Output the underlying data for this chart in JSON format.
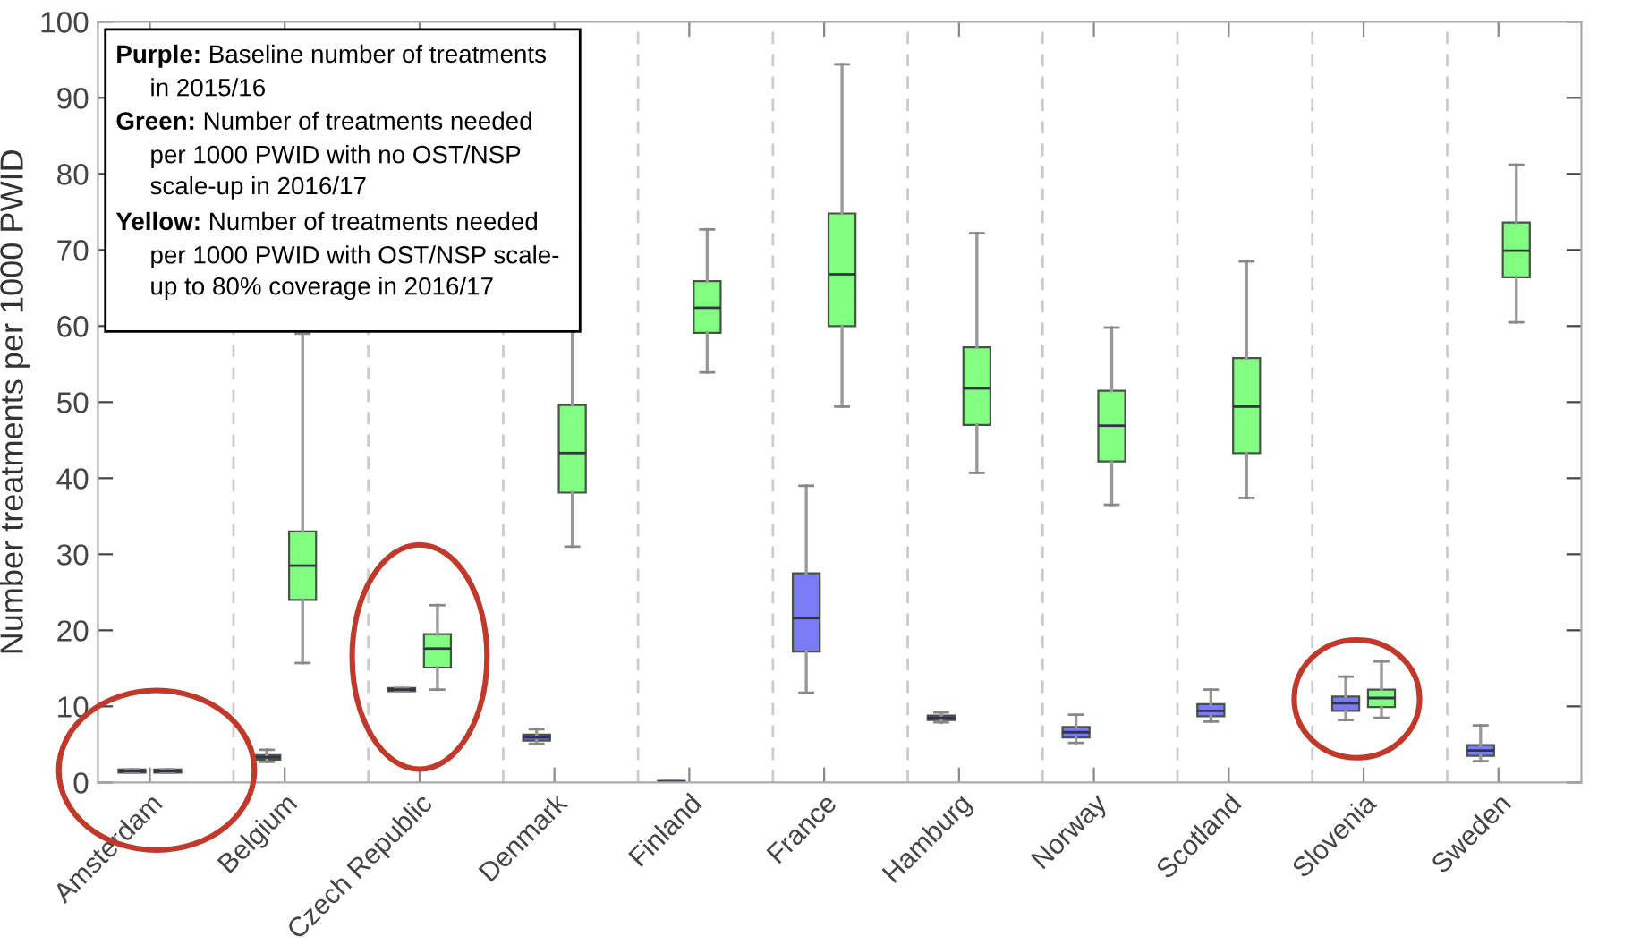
{
  "chart_data": {
    "type": "box",
    "ylabel": "Number treatments per 1000 PWID",
    "categories": [
      "Amsterdam",
      "Belgium",
      "Czech Republic",
      "Denmark",
      "Finland",
      "France",
      "Hamburg",
      "Norway",
      "Scotland",
      "Slovenia",
      "Sweden"
    ],
    "ylim": [
      0,
      100
    ],
    "yticks": [
      0,
      10,
      20,
      30,
      40,
      50,
      60,
      70,
      80,
      90,
      100
    ],
    "grid": "x",
    "annotations": [
      "Purple: Baseline number of treatments\nin 2015/16",
      "Green: Number of treatments needed\nper 1000 PWID with no OST/NSP\nscale-up in 2016/17",
      "Yellow: Number of treatments needed\nper 1000 PWID with OST/NSP scale-\nup to 80% coverage in 2016/17"
    ],
    "series": [
      {
        "color": "#7b7bf5",
        "boxes": [
          {
            "low": 1.3,
            "q1": 1.3,
            "median": 1.5,
            "q3": 1.7,
            "high": 1.7
          },
          {
            "low": 2.7,
            "q1": 3.0,
            "median": 3.3,
            "q3": 3.6,
            "high": 4.3
          },
          {
            "low": 12.0,
            "q1": 12.0,
            "median": 12.2,
            "q3": 12.4,
            "high": 12.4
          },
          {
            "low": 5.1,
            "q1": 5.5,
            "median": 5.9,
            "q3": 6.3,
            "high": 7.0
          },
          {
            "low": 0.0,
            "q1": 0.0,
            "median": 0.1,
            "q3": 0.2,
            "high": 0.2
          },
          {
            "low": 11.8,
            "q1": 17.2,
            "median": 21.6,
            "q3": 27.5,
            "high": 39.0
          },
          {
            "low": 7.9,
            "q1": 8.2,
            "median": 8.5,
            "q3": 8.8,
            "high": 9.2
          },
          {
            "low": 5.2,
            "q1": 5.9,
            "median": 6.6,
            "q3": 7.3,
            "high": 8.9
          },
          {
            "low": 8.0,
            "q1": 8.7,
            "median": 9.4,
            "q3": 10.3,
            "high": 12.2
          },
          {
            "low": 8.2,
            "q1": 9.4,
            "median": 10.4,
            "q3": 11.3,
            "high": 13.9
          },
          {
            "low": 2.8,
            "q1": 3.5,
            "median": 4.2,
            "q3": 4.9,
            "high": 7.5
          }
        ]
      },
      {
        "color": "#80ff80",
        "boxes": [
          {
            "low": 1.3,
            "q1": 1.3,
            "median": 1.5,
            "q3": 1.7,
            "high": 1.7
          },
          {
            "low": 15.7,
            "q1": 24.0,
            "median": 28.5,
            "q3": 33.0,
            "high": 59.0
          },
          {
            "low": 12.2,
            "q1": 15.1,
            "median": 17.6,
            "q3": 19.5,
            "high": 23.3
          },
          {
            "low": 31.0,
            "q1": 38.1,
            "median": 43.3,
            "q3": 49.6,
            "high": 70.8
          },
          {
            "low": 53.9,
            "q1": 59.1,
            "median": 62.4,
            "q3": 65.9,
            "high": 72.7
          },
          {
            "low": 49.4,
            "q1": 60.0,
            "median": 66.8,
            "q3": 74.8,
            "high": 94.4
          },
          {
            "low": 40.7,
            "q1": 47.0,
            "median": 51.8,
            "q3": 57.2,
            "high": 72.2
          },
          {
            "low": 36.5,
            "q1": 42.2,
            "median": 46.9,
            "q3": 51.5,
            "high": 59.8
          },
          {
            "low": 37.4,
            "q1": 43.3,
            "median": 49.4,
            "q3": 55.8,
            "high": 68.5
          },
          {
            "low": 8.5,
            "q1": 9.9,
            "median": 11.1,
            "q3": 12.2,
            "high": 15.9
          },
          {
            "low": 60.5,
            "q1": 66.4,
            "median": 69.9,
            "q3": 73.6,
            "high": 81.2
          }
        ]
      }
    ]
  }
}
